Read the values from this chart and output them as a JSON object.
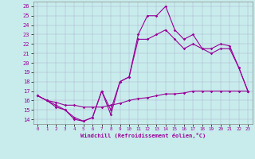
{
  "xlabel": "Windchill (Refroidissement éolien,°C)",
  "bg_color": "#c8ecec",
  "line_color": "#990099",
  "hours": [
    0,
    1,
    2,
    3,
    4,
    5,
    6,
    7,
    8,
    9,
    10,
    11,
    12,
    13,
    14,
    15,
    16,
    17,
    18,
    19,
    20,
    21,
    22,
    23
  ],
  "temp": [
    16.5,
    16.0,
    15.5,
    15.0,
    14.0,
    13.8,
    14.2,
    17.0,
    14.5,
    18.0,
    18.5,
    23.0,
    25.0,
    25.0,
    26.0,
    23.5,
    22.5,
    23.0,
    21.5,
    21.5,
    22.0,
    21.8,
    19.5,
    17.0
  ],
  "windchill": [
    16.5,
    16.0,
    15.3,
    15.0,
    14.2,
    13.8,
    14.2,
    17.0,
    15.0,
    18.0,
    18.5,
    22.5,
    22.5,
    23.0,
    23.5,
    22.5,
    21.5,
    22.0,
    21.5,
    21.0,
    21.5,
    21.5,
    19.5,
    17.0
  ],
  "dew": [
    16.5,
    16.0,
    15.8,
    15.5,
    15.5,
    15.3,
    15.3,
    15.3,
    15.5,
    15.7,
    16.0,
    16.2,
    16.3,
    16.5,
    16.7,
    16.7,
    16.8,
    17.0,
    17.0,
    17.0,
    17.0,
    17.0,
    17.0,
    17.0
  ],
  "ylim": [
    13.5,
    26.5
  ],
  "xlim": [
    -0.5,
    23.5
  ],
  "yticks": [
    14,
    15,
    16,
    17,
    18,
    19,
    20,
    21,
    22,
    23,
    24,
    25,
    26
  ],
  "xticks": [
    0,
    1,
    2,
    3,
    4,
    5,
    6,
    7,
    8,
    9,
    10,
    11,
    12,
    13,
    14,
    15,
    16,
    17,
    18,
    19,
    20,
    21,
    22,
    23
  ],
  "figsize": [
    3.2,
    2.0
  ],
  "dpi": 100
}
